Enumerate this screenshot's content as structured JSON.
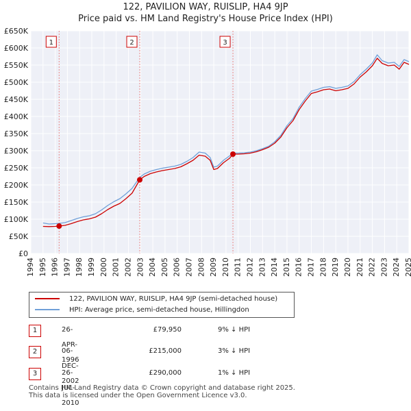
{
  "chart_data": {
    "type": "line",
    "title": "122, PAVILION WAY, RUISLIP, HA4 9JP",
    "subtitle": "Price paid vs. HM Land Registry's House Price Index (HPI)",
    "x_range": [
      1994,
      2025
    ],
    "ylim": [
      0,
      650000
    ],
    "y_ticks": [
      0,
      50000,
      100000,
      150000,
      200000,
      250000,
      300000,
      350000,
      400000,
      450000,
      500000,
      550000,
      600000,
      650000
    ],
    "y_tick_labels": [
      "£0",
      "£50K",
      "£100K",
      "£150K",
      "£200K",
      "£250K",
      "£300K",
      "£350K",
      "£400K",
      "£450K",
      "£500K",
      "£550K",
      "£600K",
      "£650K"
    ],
    "x_ticks": [
      1994,
      1995,
      1996,
      1997,
      1998,
      1999,
      2000,
      2001,
      2002,
      2003,
      2004,
      2005,
      2006,
      2007,
      2008,
      2009,
      2010,
      2011,
      2012,
      2013,
      2014,
      2015,
      2016,
      2017,
      2018,
      2019,
      2020,
      2021,
      2022,
      2023,
      2024,
      2025
    ],
    "grid": true,
    "series": [
      {
        "name": "122, PAVILION WAY, RUISLIP, HA4 9JP (semi-detached house)",
        "color": "#cc0000",
        "points": [
          [
            1995.0,
            79000
          ],
          [
            1995.5,
            78500
          ],
          [
            1996.0,
            79000
          ],
          [
            1996.32,
            79950
          ],
          [
            1996.8,
            82000
          ],
          [
            1997.3,
            87000
          ],
          [
            1997.8,
            93000
          ],
          [
            1998.3,
            98000
          ],
          [
            1998.8,
            101000
          ],
          [
            1999.3,
            106000
          ],
          [
            1999.8,
            116000
          ],
          [
            2000.3,
            128000
          ],
          [
            2000.8,
            138000
          ],
          [
            2001.3,
            146000
          ],
          [
            2001.8,
            160000
          ],
          [
            2002.3,
            176000
          ],
          [
            2002.93,
            215000
          ],
          [
            2003.3,
            225000
          ],
          [
            2003.8,
            233000
          ],
          [
            2004.3,
            238000
          ],
          [
            2004.8,
            242000
          ],
          [
            2005.3,
            245000
          ],
          [
            2005.8,
            248000
          ],
          [
            2006.3,
            253000
          ],
          [
            2006.8,
            262000
          ],
          [
            2007.3,
            272000
          ],
          [
            2007.8,
            287000
          ],
          [
            2008.3,
            284000
          ],
          [
            2008.7,
            272000
          ],
          [
            2009.0,
            245000
          ],
          [
            2009.3,
            248000
          ],
          [
            2009.8,
            265000
          ],
          [
            2010.3,
            278000
          ],
          [
            2010.57,
            290000
          ],
          [
            2011.0,
            290000
          ],
          [
            2011.5,
            291000
          ],
          [
            2012.0,
            293000
          ],
          [
            2012.5,
            297000
          ],
          [
            2013.0,
            303000
          ],
          [
            2013.5,
            310000
          ],
          [
            2014.0,
            322000
          ],
          [
            2014.5,
            340000
          ],
          [
            2015.0,
            367000
          ],
          [
            2015.5,
            388000
          ],
          [
            2016.0,
            420000
          ],
          [
            2016.5,
            445000
          ],
          [
            2017.0,
            467000
          ],
          [
            2017.5,
            472000
          ],
          [
            2018.0,
            478000
          ],
          [
            2018.5,
            480000
          ],
          [
            2019.0,
            475000
          ],
          [
            2019.5,
            478000
          ],
          [
            2020.0,
            482000
          ],
          [
            2020.5,
            495000
          ],
          [
            2021.0,
            515000
          ],
          [
            2021.5,
            530000
          ],
          [
            2022.0,
            548000
          ],
          [
            2022.4,
            570000
          ],
          [
            2022.8,
            555000
          ],
          [
            2023.3,
            548000
          ],
          [
            2023.8,
            550000
          ],
          [
            2024.2,
            538000
          ],
          [
            2024.6,
            558000
          ],
          [
            2025.0,
            552000
          ]
        ]
      },
      {
        "name": "HPI: Average price, semi-detached house, Hillingdon",
        "color": "#6f9fd8",
        "points": [
          [
            1995.0,
            89000
          ],
          [
            1995.5,
            86000
          ],
          [
            1996.0,
            87000
          ],
          [
            1996.32,
            87900
          ],
          [
            1996.8,
            90000
          ],
          [
            1997.3,
            96000
          ],
          [
            1997.8,
            102000
          ],
          [
            1998.3,
            107000
          ],
          [
            1998.8,
            110000
          ],
          [
            1999.3,
            116000
          ],
          [
            1999.8,
            127000
          ],
          [
            2000.3,
            140000
          ],
          [
            2000.8,
            151000
          ],
          [
            2001.3,
            160000
          ],
          [
            2001.8,
            174000
          ],
          [
            2002.3,
            190000
          ],
          [
            2002.93,
            222000
          ],
          [
            2003.3,
            232000
          ],
          [
            2003.8,
            240000
          ],
          [
            2004.3,
            245000
          ],
          [
            2004.8,
            249000
          ],
          [
            2005.3,
            252000
          ],
          [
            2005.8,
            255000
          ],
          [
            2006.3,
            260000
          ],
          [
            2006.8,
            269000
          ],
          [
            2007.3,
            280000
          ],
          [
            2007.8,
            296000
          ],
          [
            2008.3,
            293000
          ],
          [
            2008.7,
            280000
          ],
          [
            2009.0,
            252000
          ],
          [
            2009.3,
            255000
          ],
          [
            2009.8,
            272000
          ],
          [
            2010.3,
            285000
          ],
          [
            2010.57,
            293000
          ],
          [
            2011.0,
            293000
          ],
          [
            2011.5,
            294000
          ],
          [
            2012.0,
            296000
          ],
          [
            2012.5,
            300000
          ],
          [
            2013.0,
            306000
          ],
          [
            2013.5,
            313000
          ],
          [
            2014.0,
            326000
          ],
          [
            2014.5,
            345000
          ],
          [
            2015.0,
            373000
          ],
          [
            2015.5,
            394000
          ],
          [
            2016.0,
            427000
          ],
          [
            2016.5,
            452000
          ],
          [
            2017.0,
            474000
          ],
          [
            2017.5,
            479000
          ],
          [
            2018.0,
            485000
          ],
          [
            2018.5,
            487000
          ],
          [
            2019.0,
            482000
          ],
          [
            2019.5,
            485000
          ],
          [
            2020.0,
            489000
          ],
          [
            2020.5,
            502000
          ],
          [
            2021.0,
            522000
          ],
          [
            2021.5,
            538000
          ],
          [
            2022.0,
            556000
          ],
          [
            2022.4,
            580000
          ],
          [
            2022.8,
            563000
          ],
          [
            2023.3,
            556000
          ],
          [
            2023.8,
            558000
          ],
          [
            2024.2,
            546000
          ],
          [
            2024.6,
            566000
          ],
          [
            2025.0,
            560000
          ]
        ]
      }
    ],
    "markers": [
      {
        "label": "1",
        "x": 1996.32,
        "value": 79950
      },
      {
        "label": "2",
        "x": 2002.93,
        "value": 215000
      },
      {
        "label": "3",
        "x": 2010.57,
        "value": 290000
      }
    ]
  },
  "legend": {
    "property_label": "122, PAVILION WAY, RUISLIP, HA4 9JP (semi-detached house)",
    "hpi_label": "HPI: Average price, semi-detached house, Hillingdon"
  },
  "sales": [
    {
      "badge": "1",
      "date": "26-APR-1996",
      "price": "£79,950",
      "hpi": "9% ↓ HPI"
    },
    {
      "badge": "2",
      "date": "06-DEC-2002",
      "price": "£215,000",
      "hpi": "3% ↓ HPI"
    },
    {
      "badge": "3",
      "date": "26-JUL-2010",
      "price": "£290,000",
      "hpi": "1% ↓ HPI"
    }
  ],
  "footer": {
    "line1": "Contains HM Land Registry data © Crown copyright and database right 2025.",
    "line2": "This data is licensed under the Open Government Licence v3.0."
  },
  "colors": {
    "property": "#cc0000",
    "hpi": "#6f9fd8",
    "plot_bg": "#eef0f7",
    "grid": "#ffffff",
    "marker_line": "#e88888"
  }
}
